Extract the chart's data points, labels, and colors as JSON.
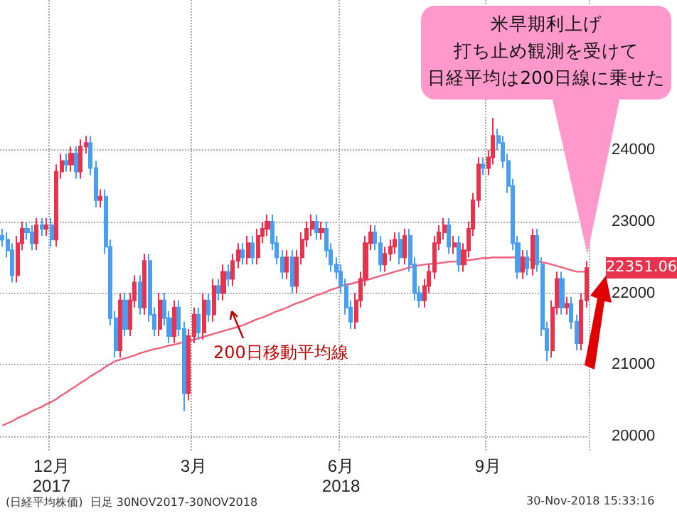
{
  "chart_data": {
    "type": "candlestick",
    "categories": [
      null,
      null,
      null,
      null,
      null,
      null,
      null,
      null,
      null,
      null,
      "12月\n2017",
      null,
      null,
      null,
      null,
      null,
      null,
      null,
      null,
      null,
      null,
      null,
      null,
      null,
      null,
      null,
      null,
      null,
      null,
      null,
      null,
      null,
      null,
      null,
      null,
      null,
      null,
      null,
      null,
      "3月",
      null,
      null,
      null,
      null,
      null,
      null,
      null,
      null,
      null,
      null,
      null,
      null,
      null,
      null,
      null,
      null,
      null,
      null,
      null,
      null,
      null,
      null,
      null,
      null,
      null,
      null,
      null,
      null,
      null,
      "6月\n2018",
      null,
      null,
      null,
      null,
      null,
      null,
      null,
      null,
      null,
      null,
      null,
      null,
      null,
      null,
      null,
      null,
      null,
      null,
      null,
      null,
      null,
      null,
      null,
      null,
      null,
      null,
      null,
      null,
      null,
      "9月",
      null,
      null,
      null,
      null,
      null,
      null,
      null,
      null,
      null,
      null,
      null,
      null,
      null,
      null,
      null,
      null,
      null,
      null,
      null,
      null
    ],
    "ohlc": [
      [
        22800,
        22900,
        22650,
        22750
      ],
      [
        22750,
        22850,
        22500,
        22600
      ],
      [
        22600,
        22700,
        22150,
        22250
      ],
      [
        22250,
        22800,
        22150,
        22700
      ],
      [
        22700,
        23000,
        22600,
        22900
      ],
      [
        22900,
        23000,
        22750,
        22850
      ],
      [
        22850,
        22950,
        22600,
        22700
      ],
      [
        22700,
        23050,
        22600,
        22950
      ],
      [
        22950,
        23050,
        22800,
        22900
      ],
      [
        22900,
        23050,
        22800,
        22950
      ],
      [
        22950,
        23050,
        22650,
        22750
      ],
      [
        22750,
        23800,
        22650,
        23700
      ],
      [
        23700,
        23950,
        23600,
        23850
      ],
      [
        23850,
        23950,
        23700,
        23800
      ],
      [
        23800,
        24050,
        23700,
        23950
      ],
      [
        23950,
        24050,
        23600,
        23700
      ],
      [
        23700,
        24150,
        23600,
        24050
      ],
      [
        24050,
        24200,
        23950,
        24100
      ],
      [
        24100,
        24200,
        23650,
        23750
      ],
      [
        23750,
        23850,
        23200,
        23300
      ],
      [
        23300,
        23450,
        23200,
        23350
      ],
      [
        23350,
        23450,
        22550,
        22650
      ],
      [
        22650,
        22750,
        21550,
        21650
      ],
      [
        21650,
        21750,
        21100,
        21200
      ],
      [
        21200,
        22000,
        21100,
        21900
      ],
      [
        21900,
        22000,
        21400,
        21500
      ],
      [
        21500,
        22000,
        21400,
        21900
      ],
      [
        21900,
        22250,
        21800,
        22150
      ],
      [
        22150,
        22250,
        21700,
        21800
      ],
      [
        21800,
        22550,
        21700,
        22450
      ],
      [
        22450,
        22550,
        21600,
        21700
      ],
      [
        21700,
        21800,
        21400,
        21500
      ],
      [
        21500,
        22000,
        21400,
        21900
      ],
      [
        21900,
        22000,
        21550,
        21650
      ],
      [
        21650,
        21750,
        21300,
        21400
      ],
      [
        21400,
        21900,
        21300,
        21800
      ],
      [
        21800,
        21900,
        21400,
        21500
      ],
      [
        21500,
        21600,
        20350,
        20600
      ],
      [
        20600,
        21500,
        20500,
        21400
      ],
      [
        21400,
        21800,
        21300,
        21700
      ],
      [
        21700,
        21800,
        21350,
        21450
      ],
      [
        21450,
        22000,
        21350,
        21900
      ],
      [
        21900,
        22000,
        21600,
        21700
      ],
      [
        21700,
        22200,
        21600,
        22100
      ],
      [
        22100,
        22200,
        21900,
        22000
      ],
      [
        22000,
        22400,
        21900,
        22300
      ],
      [
        22300,
        22400,
        22100,
        22200
      ],
      [
        22200,
        22550,
        22100,
        22450
      ],
      [
        22450,
        22700,
        22350,
        22600
      ],
      [
        22600,
        22700,
        22400,
        22500
      ],
      [
        22500,
        22800,
        22400,
        22700
      ],
      [
        22700,
        22800,
        22400,
        22500
      ],
      [
        22500,
        22900,
        22400,
        22800
      ],
      [
        22800,
        23000,
        22700,
        22900
      ],
      [
        22900,
        23100,
        22800,
        23000
      ],
      [
        23000,
        23100,
        22600,
        22700
      ],
      [
        22700,
        22800,
        22400,
        22500
      ],
      [
        22500,
        22600,
        22200,
        22300
      ],
      [
        22300,
        22600,
        22200,
        22500
      ],
      [
        22500,
        22600,
        22000,
        22100
      ],
      [
        22100,
        22600,
        22000,
        22500
      ],
      [
        22500,
        22850,
        22400,
        22750
      ],
      [
        22750,
        23000,
        22650,
        22900
      ],
      [
        22900,
        23100,
        22800,
        23000
      ],
      [
        23000,
        23100,
        22750,
        22850
      ],
      [
        22850,
        23000,
        22750,
        22900
      ],
      [
        22900,
        23000,
        22500,
        22600
      ],
      [
        22600,
        22700,
        22300,
        22400
      ],
      [
        22400,
        22500,
        22200,
        22300
      ],
      [
        22300,
        22400,
        22000,
        22100
      ],
      [
        22100,
        22200,
        21700,
        21800
      ],
      [
        21800,
        21900,
        21500,
        21600
      ],
      [
        21600,
        22000,
        21500,
        21900
      ],
      [
        21900,
        22300,
        21800,
        22200
      ],
      [
        22200,
        22800,
        22100,
        22700
      ],
      [
        22700,
        22950,
        22600,
        22850
      ],
      [
        22850,
        22950,
        22600,
        22700
      ],
      [
        22700,
        22800,
        22300,
        22400
      ],
      [
        22400,
        22650,
        22300,
        22550
      ],
      [
        22550,
        22750,
        22450,
        22650
      ],
      [
        22650,
        22850,
        22550,
        22750
      ],
      [
        22750,
        22850,
        22400,
        22500
      ],
      [
        22500,
        22900,
        22400,
        22800
      ],
      [
        22800,
        22900,
        22300,
        22400
      ],
      [
        22400,
        22500,
        21900,
        22000
      ],
      [
        22000,
        22100,
        21800,
        21900
      ],
      [
        21900,
        22200,
        21800,
        22100
      ],
      [
        22100,
        22400,
        22000,
        22300
      ],
      [
        22300,
        22800,
        22200,
        22700
      ],
      [
        22700,
        22950,
        22600,
        22850
      ],
      [
        22850,
        23050,
        22750,
        22950
      ],
      [
        22950,
        23050,
        22550,
        22650
      ],
      [
        22650,
        22800,
        22550,
        22700
      ],
      [
        22700,
        22800,
        22300,
        22400
      ],
      [
        22400,
        22700,
        22300,
        22600
      ],
      [
        22600,
        23000,
        22500,
        22900
      ],
      [
        22900,
        23400,
        22800,
        23300
      ],
      [
        23300,
        23900,
        23200,
        23800
      ],
      [
        23800,
        23900,
        23650,
        23750
      ],
      [
        23750,
        24000,
        23650,
        23900
      ],
      [
        23900,
        24450,
        23800,
        24200
      ],
      [
        24200,
        24300,
        24000,
        24100
      ],
      [
        24100,
        24200,
        23750,
        23850
      ],
      [
        23850,
        23950,
        23400,
        23500
      ],
      [
        23500,
        23600,
        22600,
        22700
      ],
      [
        22700,
        22800,
        22200,
        22300
      ],
      [
        22300,
        22600,
        22200,
        22500
      ],
      [
        22500,
        22600,
        22250,
        22350
      ],
      [
        22350,
        22900,
        22250,
        22800
      ],
      [
        22800,
        22900,
        22300,
        22400
      ],
      [
        22400,
        22500,
        21400,
        21500
      ],
      [
        21500,
        21600,
        21050,
        21200
      ],
      [
        21200,
        21900,
        21100,
        21800
      ],
      [
        21800,
        22300,
        21700,
        22200
      ],
      [
        22200,
        22300,
        21700,
        21800
      ],
      [
        21800,
        21950,
        21700,
        21850
      ],
      [
        21850,
        21950,
        21500,
        21600
      ],
      [
        21600,
        21700,
        21200,
        21300
      ],
      [
        21300,
        22000,
        21200,
        21900
      ],
      [
        21900,
        22450,
        21800,
        22351.06
      ]
    ],
    "colors": [
      "#4a9ef0",
      "#4a9ef0",
      "#4a9ef0",
      "#e8334f",
      "#e8334f",
      "#4a9ef0",
      "#4a9ef0",
      "#e8334f",
      "#4a9ef0",
      "#e8334f",
      "#4a9ef0",
      "#e8334f",
      "#e8334f",
      "#4a9ef0",
      "#e8334f",
      "#4a9ef0",
      "#e8334f",
      "#e8334f",
      "#4a9ef0",
      "#4a9ef0",
      "#e8334f",
      "#4a9ef0",
      "#4a9ef0",
      "#4a9ef0",
      "#e8334f",
      "#4a9ef0",
      "#e8334f",
      "#e8334f",
      "#4a9ef0",
      "#e8334f",
      "#4a9ef0",
      "#4a9ef0",
      "#e8334f",
      "#4a9ef0",
      "#4a9ef0",
      "#e8334f",
      "#4a9ef0",
      "#4a9ef0",
      "#e8334f",
      "#e8334f",
      "#4a9ef0",
      "#e8334f",
      "#4a9ef0",
      "#e8334f",
      "#4a9ef0",
      "#e8334f",
      "#4a9ef0",
      "#e8334f",
      "#e8334f",
      "#4a9ef0",
      "#e8334f",
      "#4a9ef0",
      "#e8334f",
      "#e8334f",
      "#e8334f",
      "#4a9ef0",
      "#4a9ef0",
      "#4a9ef0",
      "#e8334f",
      "#4a9ef0",
      "#e8334f",
      "#e8334f",
      "#e8334f",
      "#e8334f",
      "#4a9ef0",
      "#e8334f",
      "#4a9ef0",
      "#4a9ef0",
      "#4a9ef0",
      "#4a9ef0",
      "#4a9ef0",
      "#4a9ef0",
      "#e8334f",
      "#e8334f",
      "#e8334f",
      "#e8334f",
      "#4a9ef0",
      "#4a9ef0",
      "#e8334f",
      "#e8334f",
      "#e8334f",
      "#4a9ef0",
      "#e8334f",
      "#4a9ef0",
      "#4a9ef0",
      "#4a9ef0",
      "#e8334f",
      "#e8334f",
      "#e8334f",
      "#e8334f",
      "#e8334f",
      "#4a9ef0",
      "#e8334f",
      "#4a9ef0",
      "#e8334f",
      "#e8334f",
      "#e8334f",
      "#e8334f",
      "#4a9ef0",
      "#e8334f",
      "#e8334f",
      "#4a9ef0",
      "#4a9ef0",
      "#4a9ef0",
      "#4a9ef0",
      "#4a9ef0",
      "#e8334f",
      "#4a9ef0",
      "#e8334f",
      "#4a9ef0",
      "#4a9ef0",
      "#4a9ef0",
      "#e8334f",
      "#e8334f",
      "#4a9ef0",
      "#e8334f",
      "#4a9ef0",
      "#4a9ef0",
      "#e8334f",
      "#e8334f"
    ],
    "series": [
      {
        "type": "line",
        "name": "200日移動平均線",
        "color": "#f0607a",
        "values": [
          20150,
          20180,
          20210,
          20250,
          20280,
          20310,
          20350,
          20380,
          20410,
          20450,
          20480,
          20520,
          20570,
          20610,
          20660,
          20700,
          20750,
          20790,
          20840,
          20880,
          20920,
          20970,
          21010,
          21050,
          21070,
          21090,
          21110,
          21130,
          21160,
          21180,
          21200,
          21220,
          21230,
          21250,
          21270,
          21280,
          21300,
          21320,
          21330,
          21350,
          21370,
          21390,
          21410,
          21430,
          21450,
          21470,
          21490,
          21510,
          21530,
          21550,
          21580,
          21610,
          21640,
          21660,
          21690,
          21720,
          21750,
          21770,
          21800,
          21830,
          21860,
          21880,
          21910,
          21940,
          21970,
          21990,
          22020,
          22050,
          22070,
          22100,
          22120,
          22130,
          22150,
          22170,
          22180,
          22200,
          22220,
          22240,
          22260,
          22280,
          22300,
          22320,
          22340,
          22360,
          22380,
          22390,
          22400,
          22410,
          22410,
          22420,
          22430,
          22440,
          22440,
          22450,
          22460,
          22460,
          22470,
          22480,
          22490,
          22490,
          22500,
          22500,
          22500,
          22500,
          22500,
          22500,
          22500,
          22480,
          22460,
          22450,
          22430,
          22420,
          22400,
          22380,
          22360,
          22340,
          22320,
          22300,
          22300,
          22300
        ]
      }
    ],
    "ylim": [
      19800,
      26100
    ],
    "yticks": [
      20000,
      21000,
      22000,
      23000,
      24000
    ],
    "grid": true,
    "marker": "none",
    "annotations": [
      "米早期利上げ",
      "打ち止め観測を受けて",
      "日経平均は200日線に乗せた",
      "22351.06",
      "(日経平均株価)  日足 30NOV2017-30NOV2018",
      "30-Nov-2018 15:33:16"
    ]
  }
}
